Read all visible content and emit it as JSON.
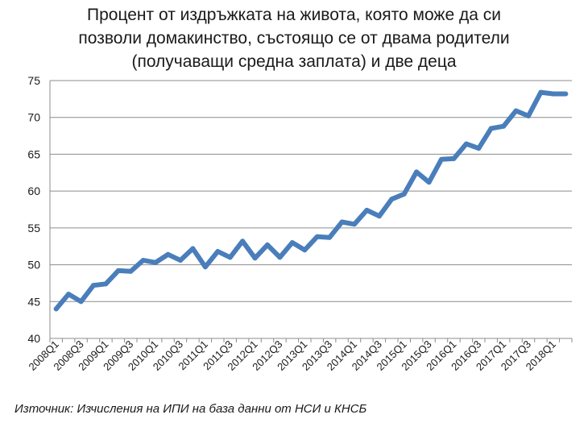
{
  "chart_data": {
    "type": "line",
    "title_lines": [
      "Процент от издръжката на живота, която може да си",
      "позволи домакинство, състоящо се от двама родители",
      "(получаващи средна заплата) и две деца"
    ],
    "source": "Източник: Изчисления на ИПИ на база данни от НСИ и КНСБ",
    "ylim": [
      40,
      75
    ],
    "yticks": [
      "40",
      "45",
      "50",
      "55",
      "60",
      "65",
      "70",
      "75"
    ],
    "grid": true,
    "x": [
      "2008Q1",
      "2008Q2",
      "2008Q3",
      "2008Q4",
      "2009Q1",
      "2009Q2",
      "2009Q3",
      "2009Q4",
      "2010Q1",
      "2010Q2",
      "2010Q3",
      "2010Q4",
      "2011Q1",
      "2011Q2",
      "2011Q3",
      "2011Q4",
      "2012Q1",
      "2012Q2",
      "2012Q3",
      "2012Q4",
      "2013Q1",
      "2013Q2",
      "2013Q3",
      "2013Q4",
      "2014Q1",
      "2014Q2",
      "2014Q3",
      "2014Q4",
      "2015Q1",
      "2015Q2",
      "2015Q3",
      "2015Q4",
      "2016Q1",
      "2016Q2",
      "2016Q3",
      "2016Q4",
      "2017Q1",
      "2017Q2",
      "2017Q3",
      "2017Q4",
      "2018Q1",
      "2018Q2"
    ],
    "xtick_labels": [
      "2008Q1",
      "2008Q3",
      "2009Q1",
      "2009Q3",
      "2010Q1",
      "2010Q3",
      "2011Q1",
      "2011Q3",
      "2012Q1",
      "2012Q3",
      "2013Q1",
      "2013Q3",
      "2014Q1",
      "2014Q3",
      "2015Q1",
      "2015Q3",
      "2016Q1",
      "2016Q3",
      "2017Q1",
      "2017Q3",
      "2018Q1"
    ],
    "series": [
      {
        "color": "#4a7ebb",
        "values": [
          44.0,
          46.0,
          45.0,
          47.2,
          47.4,
          49.2,
          49.1,
          50.6,
          50.3,
          51.4,
          50.6,
          52.2,
          49.7,
          51.8,
          51.0,
          53.2,
          50.9,
          52.7,
          51.0,
          53.0,
          52.0,
          53.8,
          53.7,
          55.8,
          55.5,
          57.4,
          56.6,
          58.9,
          59.6,
          62.6,
          61.2,
          64.3,
          64.4,
          66.4,
          65.8,
          68.5,
          68.8,
          70.9,
          70.2,
          73.4,
          73.2,
          73.2
        ]
      }
    ]
  }
}
